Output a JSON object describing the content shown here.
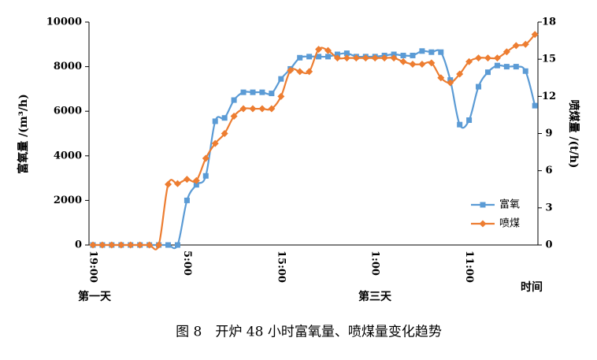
{
  "chart_data": {
    "type": "line",
    "title": "图 8　开炉 48 小时富氧量、喷煤量变化趋势",
    "y_label": "富氧量 /(m³/h)",
    "y2_label": "喷煤量 /(t/h)",
    "x_label": "时间",
    "annotations": [
      "第一天",
      "第三天"
    ],
    "categories": [
      "19:00",
      null,
      null,
      null,
      null,
      null,
      null,
      null,
      null,
      null,
      "5:00",
      null,
      null,
      null,
      null,
      null,
      null,
      null,
      null,
      null,
      "15:00",
      null,
      null,
      null,
      null,
      null,
      null,
      null,
      null,
      null,
      "1:00",
      null,
      null,
      null,
      null,
      null,
      null,
      null,
      null,
      null,
      "11:00",
      null,
      null,
      null,
      null,
      null,
      null,
      null
    ],
    "ylim": [
      0,
      10000
    ],
    "yticks": [
      0,
      2000,
      4000,
      6000,
      8000,
      10000
    ],
    "y2lim": [
      0,
      18
    ],
    "y2ticks": [
      0,
      3,
      6,
      9,
      12,
      15,
      18
    ],
    "series": [
      {
        "name": "富氧",
        "color": "#5b9bd5",
        "marker": "square",
        "values": [
          0,
          0,
          0,
          0,
          0,
          0,
          0,
          0,
          0,
          0,
          2000,
          2700,
          3100,
          5550,
          5700,
          6500,
          6850,
          6850,
          6850,
          6800,
          7450,
          7900,
          8400,
          8450,
          8450,
          8450,
          8550,
          8600,
          8450,
          8450,
          8450,
          8500,
          8550,
          8500,
          8500,
          8700,
          8650,
          8650,
          7400,
          5400,
          5600,
          7100,
          7750,
          8050,
          8000,
          8000,
          7800,
          6250
        ]
      },
      {
        "name": "喷煤",
        "color": "#ed7d31",
        "marker": "diamond",
        "axis": "y2",
        "values": [
          0,
          0,
          0,
          0,
          0,
          0,
          0,
          0,
          4.9,
          4.95,
          5.3,
          5.2,
          7.0,
          8.2,
          9.0,
          10.4,
          11.0,
          11.0,
          11.0,
          11.0,
          12.0,
          14.1,
          14.0,
          14.0,
          15.8,
          15.7,
          15.1,
          15.1,
          15.1,
          15.1,
          15.1,
          15.1,
          15.1,
          14.8,
          14.6,
          14.6,
          14.7,
          13.5,
          13.1,
          13.8,
          14.8,
          15.1,
          15.1,
          15.1,
          15.6,
          16.1,
          16.2,
          17.0
        ]
      }
    ]
  }
}
